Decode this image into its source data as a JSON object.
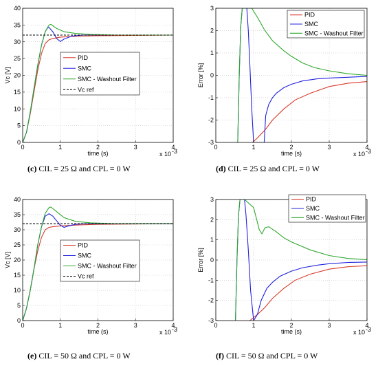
{
  "colors": {
    "PID": "#d83a2a",
    "SMC": "#2020e0",
    "SMC - Washout Filter": "#2ea82e",
    "Vc ref": "#000000"
  },
  "captions": [
    {
      "letter": "(c)",
      "text": "CIL = 25 Ω and CPL = 0 W"
    },
    {
      "letter": "(d)",
      "text": "CIL = 25 Ω and CPL = 0 W"
    },
    {
      "letter": "(e)",
      "text": "CIL = 50 Ω and CPL = 0 W"
    },
    {
      "letter": "(f)",
      "text": "CIL = 50 Ω and CPL = 0 W"
    }
  ],
  "chart_data": [
    {
      "type": "line",
      "ylabel": "Vc [V]",
      "xlabel": "time (s)",
      "x_multiplier": "x 10",
      "x_multiplier_exp": "-3",
      "xlim": [
        0,
        4
      ],
      "ylim": [
        0,
        40
      ],
      "xticks": [
        0,
        1,
        2,
        3,
        4
      ],
      "yticks": [
        0,
        5,
        10,
        15,
        20,
        25,
        30,
        35,
        40
      ],
      "legend": "center",
      "series": [
        {
          "name": "PID",
          "x": [
            0,
            0.1,
            0.2,
            0.3,
            0.4,
            0.5,
            0.6,
            0.7,
            0.8,
            1.0,
            1.5,
            2.0,
            3.0,
            4.0
          ],
          "y": [
            0,
            3,
            8.5,
            15,
            21.5,
            26.5,
            29.5,
            30.6,
            31.0,
            31.4,
            31.7,
            31.8,
            31.9,
            32.0
          ]
        },
        {
          "name": "SMC",
          "x": [
            0,
            0.1,
            0.2,
            0.3,
            0.4,
            0.5,
            0.6,
            0.65,
            0.7,
            0.8,
            0.9,
            1.0,
            1.1,
            1.3,
            1.6,
            2.0,
            3.0,
            4.0
          ],
          "y": [
            0,
            3,
            9,
            16,
            23,
            29,
            33,
            34.0,
            34.3,
            33.0,
            31.0,
            30.1,
            30.8,
            31.7,
            32.0,
            32.0,
            32.0,
            32.0
          ]
        },
        {
          "name": "SMC - Washout Filter",
          "x": [
            0,
            0.1,
            0.2,
            0.3,
            0.4,
            0.5,
            0.6,
            0.7,
            0.75,
            0.9,
            1.1,
            1.4,
            1.8,
            2.5,
            4.0
          ],
          "y": [
            0,
            3,
            9,
            16,
            23,
            29,
            33,
            35.0,
            35.2,
            34.0,
            33.0,
            32.5,
            32.2,
            32.0,
            32.0
          ]
        },
        {
          "name": "Vc ref",
          "x": [
            0,
            4
          ],
          "y": [
            32,
            32
          ]
        }
      ]
    },
    {
      "type": "line",
      "ylabel": "Error [%]",
      "xlabel": "time (s)",
      "x_multiplier": "x 10",
      "x_multiplier_exp": "-3",
      "xlim": [
        0,
        4
      ],
      "ylim": [
        -3,
        3
      ],
      "xticks": [
        0,
        1,
        2,
        3,
        4
      ],
      "yticks": [
        -3,
        -2,
        -1,
        0,
        1,
        2,
        3
      ],
      "legend": "top-right",
      "series": [
        {
          "name": "PID",
          "x": [
            0.97,
            1.1,
            1.3,
            1.5,
            1.8,
            2.1,
            2.5,
            3.0,
            3.5,
            4.0
          ],
          "y": [
            -3.0,
            -2.8,
            -2.45,
            -2.0,
            -1.5,
            -1.1,
            -0.8,
            -0.5,
            -0.35,
            -0.28
          ]
        },
        {
          "name": "SMC",
          "x": [
            0.58,
            0.62,
            0.66,
            0.7,
            0.74,
            0.78,
            0.82,
            0.86,
            0.9,
            0.95,
            1.0,
            1.28,
            1.32,
            1.4,
            1.5,
            1.6,
            1.8,
            2.0,
            2.3,
            2.7,
            3.0,
            4.0
          ],
          "y": [
            -3.0,
            0.0,
            2.2,
            3.0,
            3.0,
            3.0,
            3.0,
            2.0,
            0.5,
            -1.5,
            -3.0,
            -3.0,
            -1.8,
            -1.3,
            -1.0,
            -0.8,
            -0.55,
            -0.4,
            -0.25,
            -0.15,
            -0.12,
            -0.05
          ]
        },
        {
          "name": "SMC - Washout Filter",
          "x": [
            0.58,
            0.62,
            0.66,
            0.7,
            0.95,
            1.1,
            1.3,
            1.5,
            1.8,
            2.0,
            2.3,
            2.6,
            3.0,
            3.5,
            4.0
          ],
          "y": [
            -3.0,
            0.0,
            2.2,
            3.0,
            3.0,
            2.6,
            2.0,
            1.55,
            1.1,
            0.85,
            0.55,
            0.35,
            0.2,
            0.07,
            0.0
          ]
        }
      ]
    },
    {
      "type": "line",
      "ylabel": "Vc [V]",
      "xlabel": "time (s)",
      "x_multiplier": "x 10",
      "x_multiplier_exp": "-3",
      "xlim": [
        0,
        4
      ],
      "ylim": [
        0,
        40
      ],
      "xticks": [
        0,
        1,
        2,
        3,
        4
      ],
      "yticks": [
        0,
        5,
        10,
        15,
        20,
        25,
        30,
        35,
        40
      ],
      "legend": "bottom-center",
      "series": [
        {
          "name": "PID",
          "x": [
            0,
            0.1,
            0.2,
            0.3,
            0.4,
            0.5,
            0.6,
            0.7,
            0.8,
            1.0,
            1.5,
            2.0,
            3.0,
            4.0
          ],
          "y": [
            0,
            4,
            10,
            17,
            23,
            27.5,
            30,
            30.8,
            31.0,
            31.3,
            31.6,
            31.8,
            31.9,
            32.0
          ]
        },
        {
          "name": "SMC",
          "x": [
            0,
            0.1,
            0.2,
            0.3,
            0.4,
            0.5,
            0.6,
            0.7,
            0.8,
            0.9,
            1.0,
            1.1,
            1.2,
            1.4,
            1.7,
            2.0,
            4.0
          ],
          "y": [
            0,
            4,
            10,
            17,
            25,
            31,
            34.5,
            35.3,
            34.5,
            33.0,
            31.5,
            30.8,
            31.2,
            31.8,
            32.0,
            32.0,
            32.0
          ]
        },
        {
          "name": "SMC - Washout Filter",
          "x": [
            0,
            0.1,
            0.2,
            0.3,
            0.4,
            0.5,
            0.6,
            0.7,
            0.75,
            0.9,
            1.1,
            1.4,
            1.8,
            2.5,
            4.0
          ],
          "y": [
            0,
            4,
            10,
            17,
            25,
            31,
            35.5,
            37.3,
            37.5,
            36.0,
            34.0,
            32.8,
            32.3,
            32.0,
            32.0
          ]
        },
        {
          "name": "Vc ref",
          "x": [
            0,
            4
          ],
          "y": [
            32,
            32
          ]
        }
      ]
    },
    {
      "type": "line",
      "ylabel": "Error [%]",
      "xlabel": "time (s)",
      "x_multiplier": "x 10",
      "x_multiplier_exp": "-3",
      "xlim": [
        0,
        4
      ],
      "ylim": [
        -3,
        3
      ],
      "xticks": [
        0,
        1,
        2,
        3,
        4
      ],
      "yticks": [
        -3,
        -2,
        -1,
        0,
        1,
        2,
        3
      ],
      "legend": "top-right",
      "series": [
        {
          "name": "PID",
          "x": [
            0.9,
            1.1,
            1.3,
            1.5,
            1.8,
            2.1,
            2.5,
            3.0,
            3.5,
            4.0
          ],
          "y": [
            -3.0,
            -2.7,
            -2.35,
            -1.9,
            -1.4,
            -1.0,
            -0.7,
            -0.45,
            -0.33,
            -0.28
          ]
        },
        {
          "name": "SMC",
          "x": [
            0.52,
            0.56,
            0.6,
            0.64,
            0.68,
            0.72,
            0.76,
            0.8,
            0.86,
            0.92,
            1.0,
            1.1,
            1.2,
            1.35,
            1.5,
            1.7,
            2.0,
            2.3,
            2.7,
            3.0,
            3.5,
            4.0
          ],
          "y": [
            -3.0,
            0.0,
            2.2,
            3.0,
            3.0,
            3.0,
            3.0,
            2.2,
            0.5,
            -1.5,
            -3.0,
            -2.7,
            -2.0,
            -1.4,
            -1.1,
            -0.8,
            -0.55,
            -0.38,
            -0.25,
            -0.18,
            -0.12,
            -0.1
          ]
        },
        {
          "name": "SMC - Washout Filter",
          "x": [
            0.52,
            0.56,
            0.6,
            0.64,
            0.68,
            0.72,
            0.76,
            1.0,
            1.15,
            1.22,
            1.3,
            1.4,
            1.6,
            1.8,
            2.0,
            2.5,
            3.0,
            3.5,
            4.0
          ],
          "y": [
            -3.0,
            0.0,
            2.2,
            3.0,
            3.0,
            3.0,
            3.0,
            2.6,
            1.5,
            1.3,
            1.6,
            1.65,
            1.4,
            1.1,
            0.9,
            0.5,
            0.22,
            0.08,
            0.02
          ]
        }
      ]
    }
  ]
}
